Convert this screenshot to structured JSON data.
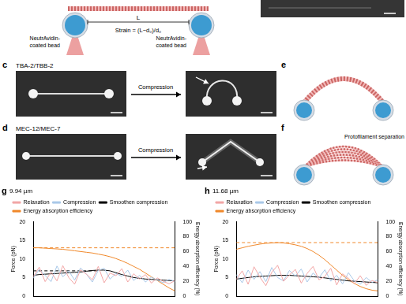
{
  "figure": {
    "a": {
      "length_label": "L",
      "strain": "Strain = (L−d₀)/d₀",
      "bead_labels": [
        [
          "NeutrAvidin-",
          "coated bead"
        ],
        [
          "NeutrAvidin-",
          "coated bead"
        ]
      ]
    },
    "c": {
      "label": "c",
      "title": "TBA-2/TBB-2",
      "arrow": "Compression"
    },
    "d": {
      "label": "d",
      "title": "MEC-12/MEC-7",
      "arrow": "Compression"
    },
    "e": {
      "label": "e"
    },
    "f": {
      "label": "f",
      "annotation": "Protofilament separation"
    }
  },
  "chart_data": [
    {
      "panel": "g",
      "type": "line",
      "annotation": "9.94 µm",
      "x": [
        0,
        1,
        2,
        3,
        4,
        5,
        6,
        7,
        8,
        9,
        10,
        11,
        12,
        13,
        14,
        15,
        16,
        17,
        18,
        19,
        20,
        21,
        22,
        23,
        24
      ],
      "xlim": [
        0,
        24
      ],
      "tick_labels": "y",
      "grid": false,
      "legend": "top",
      "ylim": [
        0,
        20
      ],
      "yticks": [
        0,
        5,
        10,
        15,
        20
      ],
      "y_label": "Force (pN)",
      "y2lim": [
        0,
        100
      ],
      "y2ticks": [
        0,
        20,
        40,
        60,
        80,
        100
      ],
      "y2_label": "Energy absorption efficiency (%)",
      "series": [
        {
          "name": "Relaxation",
          "color": "#f2a7a7",
          "line_style": "solid",
          "values": [
            5.2,
            7.8,
            3.9,
            6.5,
            4.1,
            8.2,
            5.0,
            3.2,
            7.1,
            5.9,
            4.4,
            8.0,
            3.6,
            6.2,
            5.5,
            7.4,
            3.8,
            6.0,
            4.6,
            5.8,
            3.5,
            4.9,
            4.0,
            3.3,
            4.2
          ]
        },
        {
          "name": "Compression",
          "color": "#a9c8e8",
          "line_style": "solid",
          "values": [
            4.8,
            7.2,
            5.6,
            3.9,
            8.1,
            5.2,
            6.8,
            4.3,
            7.6,
            5.9,
            3.8,
            6.9,
            7.5,
            4.6,
            6.1,
            5.3,
            7.0,
            4.2,
            5.6,
            3.8,
            5.1,
            4.3,
            3.6,
            4.5,
            3.9
          ]
        },
        {
          "name": "Smoothen compression",
          "color": "#000000",
          "line_style": "solid",
          "values": [
            5.6,
            5.8,
            5.9,
            6.0,
            6.1,
            6.2,
            6.3,
            6.4,
            6.5,
            6.7,
            6.9,
            7.0,
            7.0,
            6.8,
            6.3,
            5.8,
            5.4,
            5.0,
            4.8,
            4.6,
            4.5,
            4.4,
            4.3,
            4.2,
            4.1
          ]
        },
        {
          "name": "Energy absorption efficiency",
          "color": "#f0882a",
          "line_style": "solid",
          "axis": "y2",
          "values": [
            65,
            65,
            64.5,
            64,
            63.5,
            63,
            62,
            61,
            60,
            59,
            58,
            56.5,
            55,
            53,
            50.5,
            47.5,
            44,
            40,
            36,
            31,
            26,
            21,
            16,
            11,
            7
          ]
        }
      ],
      "hlines": [
        {
          "y": 6.8,
          "x": [
            0,
            11
          ],
          "axis": "y",
          "color": "#000000",
          "line_style": "dashed"
        },
        {
          "y": 65,
          "x": [
            0,
            24
          ],
          "axis": "y2",
          "color": "#f0882a",
          "line_style": "dashed"
        }
      ]
    },
    {
      "panel": "h",
      "type": "line",
      "annotation": "11.68 µm",
      "x": [
        0,
        1,
        2,
        3,
        4,
        5,
        6,
        7,
        8,
        9,
        10,
        11,
        12,
        13,
        14,
        15,
        16,
        17,
        18,
        19,
        20,
        21,
        22,
        23,
        24
      ],
      "xlim": [
        0,
        24
      ],
      "tick_labels": "y",
      "grid": false,
      "legend": "top",
      "ylim": [
        0,
        20
      ],
      "yticks": [
        0,
        5,
        10,
        15,
        20
      ],
      "y_label": "Force (pN)",
      "y2lim": [
        0,
        100
      ],
      "y2ticks": [
        0,
        20,
        40,
        60,
        80,
        100
      ],
      "y2_label": "Energy absorption efficiency (%)",
      "series": [
        {
          "name": "Relaxation",
          "color": "#f2a7a7",
          "line_style": "solid",
          "values": [
            4.5,
            6.8,
            3.2,
            7.9,
            5.1,
            2.8,
            6.4,
            8.3,
            4.0,
            5.7,
            7.2,
            3.5,
            6.1,
            8.0,
            4.4,
            5.3,
            7.5,
            3.0,
            6.0,
            4.8,
            3.4,
            5.5,
            2.9,
            4.2,
            3.6
          ]
        },
        {
          "name": "Compression",
          "color": "#a9c8e8",
          "line_style": "solid",
          "values": [
            5.8,
            3.6,
            7.0,
            4.5,
            6.6,
            3.9,
            7.7,
            5.0,
            4.1,
            6.9,
            5.4,
            7.3,
            3.8,
            6.2,
            4.9,
            7.1,
            4.0,
            5.6,
            3.3,
            6.3,
            4.1,
            3.2,
            5.0,
            3.7,
            4.4
          ]
        },
        {
          "name": "Smoothen compression",
          "color": "#000000",
          "line_style": "solid",
          "values": [
            4.6,
            4.8,
            5.0,
            5.2,
            5.3,
            5.4,
            5.5,
            5.6,
            5.6,
            5.6,
            5.5,
            5.4,
            5.3,
            5.2,
            5.1,
            4.9,
            4.7,
            4.5,
            4.3,
            4.1,
            4.0,
            3.9,
            3.8,
            3.7,
            3.6
          ]
        },
        {
          "name": "Energy absorption efficiency",
          "color": "#f0882a",
          "line_style": "solid",
          "axis": "y2",
          "values": [
            63,
            65,
            67,
            68.5,
            70,
            71,
            71.5,
            72,
            71.5,
            70.5,
            69,
            67,
            64,
            60,
            55,
            49,
            42,
            35,
            28,
            22,
            17,
            13,
            10,
            8,
            7
          ]
        }
      ],
      "hlines": [
        {
          "y": 72,
          "x": [
            0,
            24
          ],
          "axis": "y2",
          "color": "#f0882a",
          "line_style": "dashed"
        }
      ]
    }
  ]
}
